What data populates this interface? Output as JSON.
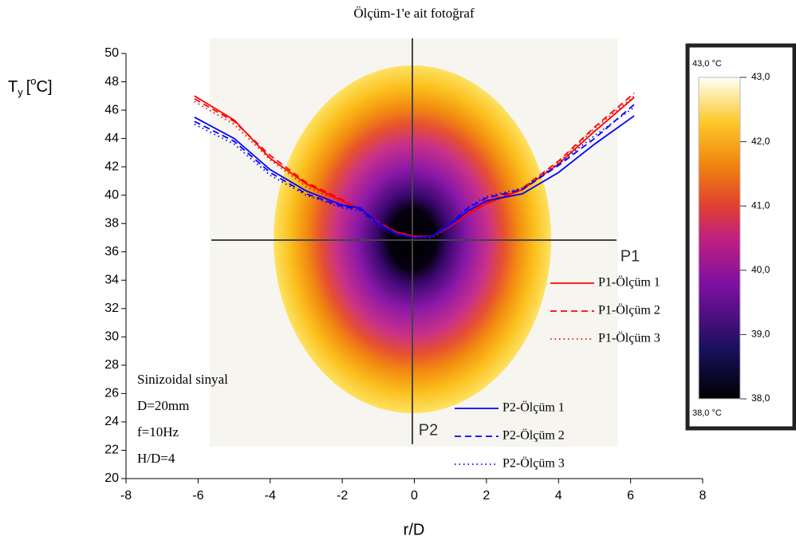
{
  "chart_data": {
    "type": "line",
    "title": "Ölçüm-1'e ait fotoğraf",
    "xlabel": "r/D",
    "ylabel": {
      "main": "T",
      "sub": "y",
      "open": "[",
      "sup": "o",
      "close": "C]"
    },
    "xlim": [
      -8,
      8
    ],
    "xticks": [
      -8,
      -6,
      -4,
      -2,
      0,
      2,
      4,
      6,
      8
    ],
    "ylim": [
      20,
      50
    ],
    "yticks": [
      20,
      22,
      24,
      26,
      28,
      30,
      32,
      34,
      36,
      38,
      40,
      42,
      44,
      46,
      48,
      50
    ],
    "x": [
      -6.1,
      -5,
      -4,
      -3,
      -2,
      -1.5,
      -1,
      -0.5,
      0,
      0.5,
      1,
      1.5,
      2,
      3,
      4,
      5,
      6.1
    ],
    "series": [
      {
        "name": "P1-Ölçüm 1",
        "color": "#ff0000",
        "dash": "solid",
        "values": [
          47.0,
          45.3,
          42.6,
          40.8,
          39.6,
          39.0,
          38.0,
          37.4,
          37.1,
          37.1,
          37.8,
          38.7,
          39.4,
          40.4,
          42.2,
          44.5,
          46.9
        ]
      },
      {
        "name": "P1-Ölçüm 2",
        "color": "#ff0000",
        "dash": "dashed",
        "values": [
          46.8,
          45.2,
          42.8,
          40.9,
          39.7,
          39.0,
          38.1,
          37.4,
          37.0,
          37.1,
          37.9,
          38.8,
          39.5,
          40.5,
          42.4,
          44.8,
          47.2
        ]
      },
      {
        "name": "P1-Ölçüm 3",
        "color": "#ff0000",
        "dash": "dotted",
        "values": [
          46.6,
          45.0,
          42.5,
          40.6,
          39.5,
          38.9,
          37.9,
          37.3,
          37.0,
          37.0,
          37.8,
          38.7,
          39.4,
          40.4,
          42.3,
          44.7,
          47.0
        ]
      },
      {
        "name": "P2-Ölçüm 1",
        "color": "#0000ff",
        "dash": "solid",
        "values": [
          45.5,
          44.0,
          41.8,
          40.3,
          39.3,
          39.1,
          38.0,
          37.3,
          37.0,
          37.1,
          37.9,
          38.9,
          39.6,
          40.1,
          41.6,
          43.6,
          45.6
        ]
      },
      {
        "name": "P2-Ölçüm 2",
        "color": "#0000ff",
        "dash": "dashed",
        "values": [
          45.2,
          43.8,
          41.6,
          40.1,
          39.2,
          39.0,
          37.9,
          37.3,
          37.0,
          37.1,
          38.0,
          39.1,
          39.8,
          40.4,
          42.1,
          44.0,
          46.4
        ]
      },
      {
        "name": "P2-Ölçüm 3",
        "color": "#0000ff",
        "dash": "dotted",
        "values": [
          45.0,
          43.6,
          41.4,
          40.0,
          39.1,
          38.9,
          37.8,
          37.2,
          37.0,
          37.1,
          38.0,
          39.2,
          39.9,
          40.5,
          42.2,
          44.2,
          46.2
        ]
      }
    ],
    "annotations": [
      "Sinizoidal sinyal",
      "D=20mm",
      "f=10Hz",
      "H/D=4"
    ],
    "image_labels": [
      "P1",
      "P2"
    ],
    "colorbar": {
      "lim": [
        38,
        43
      ],
      "max_label": "43,0 °C",
      "min_label": "38,0 °C",
      "ticks": [
        {
          "value": 43,
          "label": "43,0"
        },
        {
          "value": 42,
          "label": "42,0"
        },
        {
          "value": 41,
          "label": "41,0"
        },
        {
          "value": 40,
          "label": "40,0"
        },
        {
          "value": 39,
          "label": "39,0"
        },
        {
          "value": 38,
          "label": "38,0"
        }
      ]
    }
  }
}
